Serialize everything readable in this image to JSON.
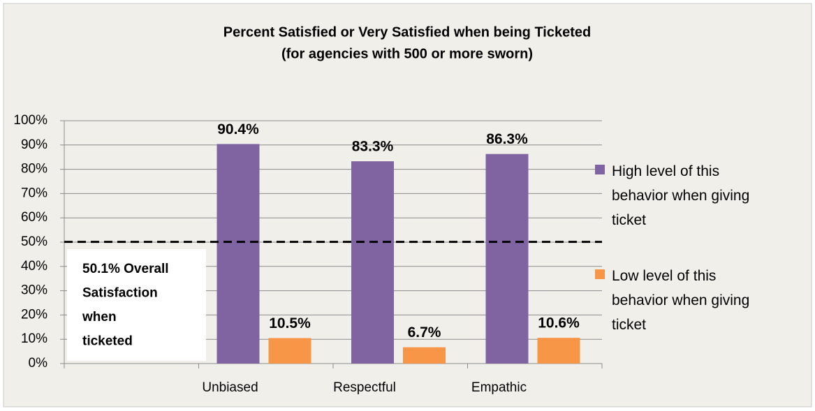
{
  "chart_data": {
    "type": "bar",
    "title": "Percent Satisfied or Very Satisfied when being Ticketed",
    "subtitle": "(for agencies with 500 or more sworn)",
    "categories": [
      null,
      "Unbiased",
      "Respectful",
      "Empathic"
    ],
    "series": [
      {
        "name": "High level of this behavior when giving ticket",
        "color": "#8064a2",
        "values": [
          null,
          90.4,
          83.3,
          86.3
        ],
        "value_labels": [
          null,
          "90.4%",
          "83.3%",
          "86.3%"
        ]
      },
      {
        "name": "Low level of this behavior when giving ticket",
        "color": "#f79646",
        "values": [
          null,
          10.5,
          6.7,
          10.6
        ],
        "value_labels": [
          null,
          "10.5%",
          "6.7%",
          "10.6%"
        ]
      }
    ],
    "ylim": [
      0,
      100
    ],
    "yticks": [
      {
        "value": 0,
        "label": "0%"
      },
      {
        "value": 10,
        "label": "10%"
      },
      {
        "value": 20,
        "label": "20%"
      },
      {
        "value": 30,
        "label": "30%"
      },
      {
        "value": 40,
        "label": "40%"
      },
      {
        "value": 50,
        "label": "50%"
      },
      {
        "value": 60,
        "label": "60%"
      },
      {
        "value": 70,
        "label": "70%"
      },
      {
        "value": 80,
        "label": "80%"
      },
      {
        "value": 90,
        "label": "90%"
      },
      {
        "value": 100,
        "label": "100%"
      }
    ],
    "grid": true,
    "reference_line": 50.1,
    "annotation": [
      "50.1% Overall",
      "Satisfaction",
      "when",
      "ticketed"
    ],
    "legend": "right"
  }
}
